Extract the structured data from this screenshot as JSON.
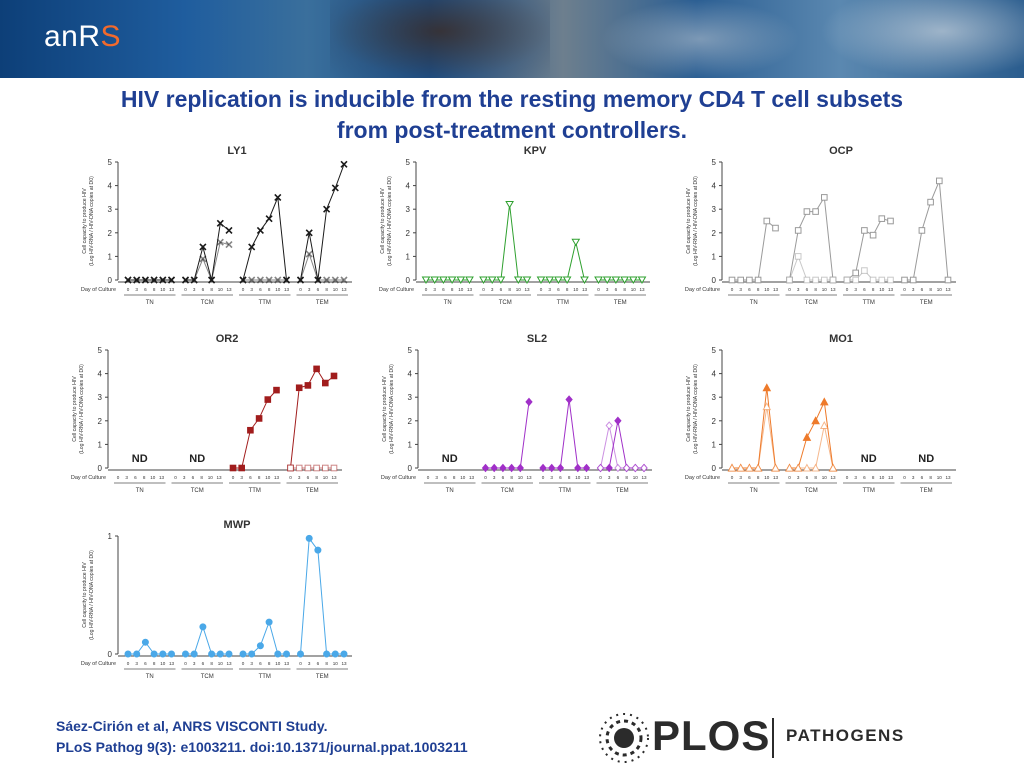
{
  "header": {
    "logo_text": "anR",
    "logo_accent": "S",
    "title_line1": "HIV replication is inducible from the resting memory CD4 T cell subsets",
    "title_line2": "from post-treatment controllers."
  },
  "common": {
    "ylabel_line1": "Cell capacity to produce HIV",
    "ylabel_line2": "(Log HIV-RNA / HIV-DNA copies at D0)",
    "xlabel": "Day of Culture",
    "days": [
      "0",
      "3",
      "6",
      "8",
      "10",
      "13"
    ],
    "subsets": [
      "TN",
      "TCM",
      "TTM",
      "TEM"
    ]
  },
  "chart_data": [
    {
      "type": "line",
      "title": "LY1",
      "ylim": [
        0,
        5
      ],
      "yticks": [
        0,
        1,
        2,
        3,
        4,
        5
      ],
      "color": "#1a1a1a",
      "marker": "x",
      "nd": [],
      "groups": [
        {
          "subset": "TN",
          "series": [
            [
              0,
              0,
              0,
              0,
              0,
              0
            ],
            [
              0,
              0,
              0,
              0,
              0,
              0
            ]
          ]
        },
        {
          "subset": "TCM",
          "series": [
            [
              0,
              0,
              1.4,
              0,
              2.4,
              2.1
            ],
            [
              0,
              0,
              0.9,
              0,
              1.6,
              1.5
            ]
          ]
        },
        {
          "subset": "TTM",
          "series": [
            [
              0,
              1.4,
              2.1,
              2.6,
              3.5,
              0
            ],
            [
              0,
              0,
              0,
              0,
              0,
              0
            ]
          ]
        },
        {
          "subset": "TEM",
          "series": [
            [
              0,
              2.0,
              0,
              3.0,
              3.9,
              4.9
            ],
            [
              0,
              1.1,
              0,
              0,
              0,
              0
            ]
          ]
        }
      ]
    },
    {
      "type": "line",
      "title": "KPV",
      "ylim": [
        0,
        5
      ],
      "yticks": [
        0,
        1,
        2,
        3,
        4,
        5
      ],
      "color": "#2ea02e",
      "marker": "triangle",
      "nd": [],
      "groups": [
        {
          "subset": "TN",
          "series": [
            [
              0,
              0,
              0,
              0,
              0,
              0
            ]
          ]
        },
        {
          "subset": "TCM",
          "series": [
            [
              0,
              0,
              0,
              3.2,
              0,
              0
            ]
          ]
        },
        {
          "subset": "TTM",
          "series": [
            [
              0,
              0,
              0,
              0,
              1.6,
              0
            ]
          ]
        },
        {
          "subset": "TEM",
          "series": [
            [
              0,
              0,
              0,
              0,
              0,
              0
            ]
          ]
        }
      ]
    },
    {
      "type": "line",
      "title": "OCP",
      "ylim": [
        0,
        5
      ],
      "yticks": [
        0,
        1,
        2,
        3,
        4,
        5
      ],
      "color": "#9a9a9a",
      "marker": "square",
      "nd": [],
      "groups": [
        {
          "subset": "TN",
          "series": [
            [
              0,
              0,
              0,
              0,
              2.5,
              2.2
            ]
          ]
        },
        {
          "subset": "TCM",
          "series": [
            [
              0,
              2.1,
              2.9,
              2.9,
              3.5,
              0
            ],
            [
              0,
              1.0,
              0,
              0,
              0,
              0
            ]
          ]
        },
        {
          "subset": "TTM",
          "series": [
            [
              0,
              0.3,
              2.1,
              1.9,
              2.6,
              2.5
            ],
            [
              0,
              0,
              0.4,
              0,
              0,
              0
            ]
          ]
        },
        {
          "subset": "TEM",
          "series": [
            [
              0,
              0,
              2.1,
              3.3,
              4.2,
              0
            ]
          ]
        }
      ]
    },
    {
      "type": "line",
      "title": "OR2",
      "ylim": [
        0,
        5
      ],
      "yticks": [
        0,
        1,
        2,
        3,
        4,
        5
      ],
      "color": "#a11d1d",
      "marker": "square",
      "nd": [
        "TN",
        "TCM"
      ],
      "groups": [
        {
          "subset": "TTM",
          "series": [
            [
              0,
              0,
              1.6,
              2.1,
              2.9,
              3.3
            ]
          ]
        },
        {
          "subset": "TEM",
          "series": [
            [
              0,
              3.4,
              3.5,
              4.2,
              3.6,
              3.9
            ],
            [
              0,
              0,
              0,
              0,
              0,
              0
            ]
          ]
        }
      ]
    },
    {
      "type": "line",
      "title": "SL2",
      "ylim": [
        0,
        5
      ],
      "yticks": [
        0,
        1,
        2,
        3,
        4,
        5
      ],
      "color": "#a030c8",
      "marker": "diamond",
      "nd": [
        "TN"
      ],
      "groups": [
        {
          "subset": "TCM",
          "series": [
            [
              0,
              0,
              0,
              0,
              0,
              2.8
            ]
          ]
        },
        {
          "subset": "TTM",
          "series": [
            [
              0,
              0,
              0,
              2.9,
              0,
              0
            ]
          ]
        },
        {
          "subset": "TEM",
          "series": [
            [
              0,
              0,
              2.0,
              0,
              0,
              0
            ],
            [
              0,
              1.8,
              0,
              0,
              0,
              0
            ]
          ]
        }
      ]
    },
    {
      "type": "line",
      "title": "MO1",
      "ylim": [
        0,
        5
      ],
      "yticks": [
        0,
        1,
        2,
        3,
        4,
        5
      ],
      "color": "#ee7a2a",
      "marker": "triangle-up",
      "nd": [
        "TTM",
        "TEM"
      ],
      "groups": [
        {
          "subset": "TN",
          "series": [
            [
              0,
              0,
              0,
              0,
              3.4,
              0
            ],
            [
              0,
              0,
              0,
              0,
              2.6,
              0
            ]
          ]
        },
        {
          "subset": "TCM",
          "series": [
            [
              0,
              0,
              1.3,
              2.0,
              2.8,
              0
            ],
            [
              0,
              0,
              0,
              0,
              1.8,
              0
            ]
          ]
        }
      ]
    },
    {
      "type": "line",
      "title": "MWP",
      "ylim": [
        0,
        1
      ],
      "yticks": [
        0,
        1
      ],
      "color": "#4aa8e8",
      "marker": "circle",
      "nd": [],
      "groups": [
        {
          "subset": "TN",
          "series": [
            [
              0,
              0,
              0.1,
              0,
              0,
              0
            ]
          ]
        },
        {
          "subset": "TCM",
          "series": [
            [
              0,
              0,
              0.23,
              0,
              0,
              0
            ]
          ]
        },
        {
          "subset": "TTM",
          "series": [
            [
              0,
              0,
              0.07,
              0.27,
              0,
              0
            ]
          ]
        },
        {
          "subset": "TEM",
          "series": [
            [
              0,
              0.98,
              0.88,
              0,
              0,
              0
            ]
          ]
        }
      ]
    }
  ],
  "footer": {
    "citation_line1": "Sáez-Cirión  et al, ANRS VISCONTI Study.",
    "citation_line2": "PLoS Pathog 9(3): e1003211. doi:10.1371/journal.ppat.1003211",
    "plos_word": "PLOS",
    "plos_journal": "PATHOGENS"
  }
}
